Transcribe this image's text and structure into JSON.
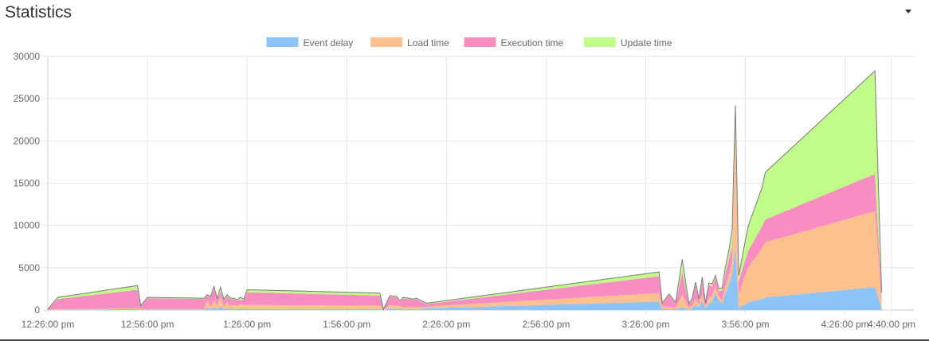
{
  "header": {
    "title": "Statistics",
    "menu_icon": "caret-down-icon"
  },
  "chart_data": {
    "type": "area",
    "stacked": true,
    "xlabel": "",
    "ylabel": "",
    "ylim": [
      0,
      30000
    ],
    "yticks": [
      "0",
      "5000",
      "10000",
      "15000",
      "20000",
      "25000",
      "30000"
    ],
    "xticks": [
      "12:26:00 pm",
      "12:56:00 pm",
      "1:26:00 pm",
      "1:56:00 pm",
      "2:26:00 pm",
      "2:56:00 pm",
      "3:26:00 pm",
      "3:56:00 pm",
      "4:26:00 pm",
      "4:40:00 pm"
    ],
    "xtick_minutes": [
      0,
      30,
      60,
      90,
      120,
      150,
      180,
      210,
      240,
      254
    ],
    "grid": true,
    "legend_position": "top",
    "colors": {
      "event": "#8cc4f7",
      "load": "#fcc18f",
      "exec": "#f88dc1",
      "update": "#c1fb8a",
      "outline": "#7a7a7a"
    },
    "x": [
      0,
      3,
      27,
      28,
      30,
      47,
      48,
      49,
      50,
      51,
      52,
      53,
      54,
      55,
      56,
      57,
      58,
      59,
      60,
      100,
      101,
      103,
      105,
      106,
      107,
      110,
      111,
      114,
      184,
      185,
      187,
      189,
      191,
      193,
      194,
      195,
      196,
      197,
      198,
      199,
      200,
      201,
      202,
      203,
      204,
      205,
      206,
      207,
      208,
      209,
      210,
      211,
      215,
      216,
      249,
      251
    ],
    "series": [
      {
        "name": "Event delay",
        "color": "#8cc4f7",
        "values": [
          0,
          50,
          100,
          50,
          50,
          50,
          300,
          100,
          300,
          100,
          400,
          100,
          200,
          100,
          100,
          100,
          200,
          100,
          100,
          100,
          0,
          200,
          100,
          200,
          100,
          100,
          100,
          200,
          1000,
          100,
          100,
          100,
          300,
          50,
          200,
          600,
          300,
          1100,
          200,
          800,
          1000,
          2000,
          1100,
          800,
          2000,
          3000,
          4200,
          7500,
          200,
          500,
          700,
          900,
          1300,
          1500,
          2700,
          200
        ]
      },
      {
        "name": "Load time",
        "color": "#fcc18f",
        "values": [
          0,
          50,
          100,
          50,
          50,
          50,
          900,
          200,
          800,
          400,
          1200,
          300,
          800,
          300,
          500,
          400,
          500,
          500,
          500,
          400,
          0,
          400,
          400,
          300,
          200,
          200,
          200,
          200,
          1000,
          300,
          300,
          200,
          1500,
          200,
          300,
          700,
          300,
          800,
          200,
          600,
          700,
          800,
          500,
          400,
          800,
          1000,
          1500,
          14000,
          1500,
          2500,
          3500,
          4200,
          6000,
          6500,
          9000,
          500
        ]
      },
      {
        "name": "Execution time",
        "color": "#f88dc1",
        "values": [
          100,
          1200,
          2200,
          300,
          1300,
          1200,
          500,
          1200,
          1400,
          800,
          600,
          800,
          600,
          900,
          700,
          600,
          500,
          600,
          1500,
          1200,
          50,
          1000,
          1000,
          500,
          1100,
          900,
          1000,
          300,
          2000,
          300,
          1400,
          500,
          2700,
          400,
          700,
          1700,
          500,
          1500,
          300,
          1500,
          1100,
          1000,
          600,
          1100,
          1500,
          2000,
          1800,
          300,
          1700,
          1700,
          1800,
          2000,
          2600,
          2700,
          4400,
          1000
        ]
      },
      {
        "name": "Update time",
        "color": "#c1fb8a",
        "values": [
          0,
          200,
          500,
          100,
          100,
          100,
          100,
          100,
          300,
          100,
          500,
          100,
          200,
          100,
          100,
          100,
          300,
          100,
          300,
          300,
          0,
          100,
          100,
          100,
          100,
          100,
          100,
          100,
          500,
          100,
          100,
          100,
          1500,
          100,
          200,
          300,
          200,
          500,
          100,
          300,
          300,
          300,
          300,
          300,
          800,
          1000,
          2000,
          2400,
          700,
          1500,
          2300,
          3000,
          4600,
          5600,
          12200,
          400
        ]
      }
    ]
  }
}
